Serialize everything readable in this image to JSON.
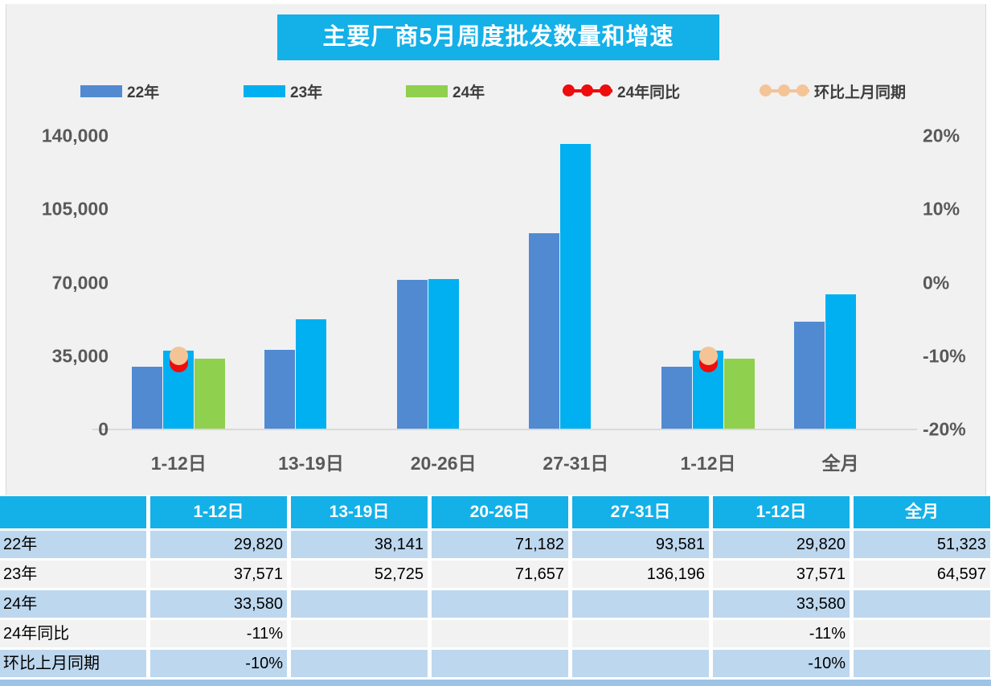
{
  "chart_data": {
    "type": "bar",
    "title": "主要厂商5月周度批发数量和增速",
    "categories": [
      "1-12日",
      "13-19日",
      "20-26日",
      "27-31日",
      "1-12日",
      "全月"
    ],
    "series": [
      {
        "name": "22年",
        "kind": "bar",
        "axis": "left",
        "color": "#528ad2",
        "values": [
          29820,
          38141,
          71182,
          93581,
          29820,
          51323
        ]
      },
      {
        "name": "23年",
        "kind": "bar",
        "axis": "left",
        "color": "#00b0f0",
        "values": [
          37571,
          52725,
          71657,
          136196,
          37571,
          64597
        ]
      },
      {
        "name": "24年",
        "kind": "bar",
        "axis": "left",
        "color": "#8fd04e",
        "values": [
          33580,
          null,
          null,
          null,
          33580,
          null
        ]
      },
      {
        "name": "24年同比",
        "kind": "point",
        "axis": "right",
        "color": "#ee0c0c",
        "values": [
          -11,
          null,
          null,
          null,
          -11,
          null
        ]
      },
      {
        "name": "环比上月同期",
        "kind": "point",
        "axis": "right",
        "color": "#f4c496",
        "values": [
          -10,
          null,
          null,
          null,
          -10,
          null
        ]
      }
    ],
    "left_axis": {
      "ticks": [
        "140,000",
        "105,000",
        "70,000",
        "35,000",
        "0"
      ],
      "min": 0,
      "max": 140000
    },
    "right_axis": {
      "ticks": [
        "20%",
        "10%",
        "0%",
        "-10%",
        "-20%"
      ],
      "min": -20,
      "max": 20
    },
    "legend_position": "top",
    "grid": false
  },
  "table": {
    "header": [
      "",
      "1-12日",
      "13-19日",
      "20-26日",
      "27-31日",
      "1-12日",
      "全月"
    ],
    "rows": [
      {
        "label": "22年",
        "values": [
          "29,820",
          "38,141",
          "71,182",
          "93,581",
          "29,820",
          "51,323"
        ]
      },
      {
        "label": "23年",
        "values": [
          "37,571",
          "52,725",
          "71,657",
          "136,196",
          "37,571",
          "64,597"
        ]
      },
      {
        "label": "24年",
        "values": [
          "33,580",
          "",
          "",
          "",
          "33,580",
          ""
        ]
      },
      {
        "label": "24年同比",
        "values": [
          "-11%",
          "",
          "",
          "",
          "-11%",
          ""
        ]
      },
      {
        "label": "环比上月同期",
        "values": [
          "-10%",
          "",
          "",
          "",
          "-10%",
          ""
        ]
      }
    ]
  },
  "colors": {
    "accent_cyan": "#14b0e8",
    "row_blue": "#bdd7ee",
    "row_gray": "#f2f2f2",
    "axis_text": "#595959",
    "bottom_strip": "#9dc3e6"
  }
}
